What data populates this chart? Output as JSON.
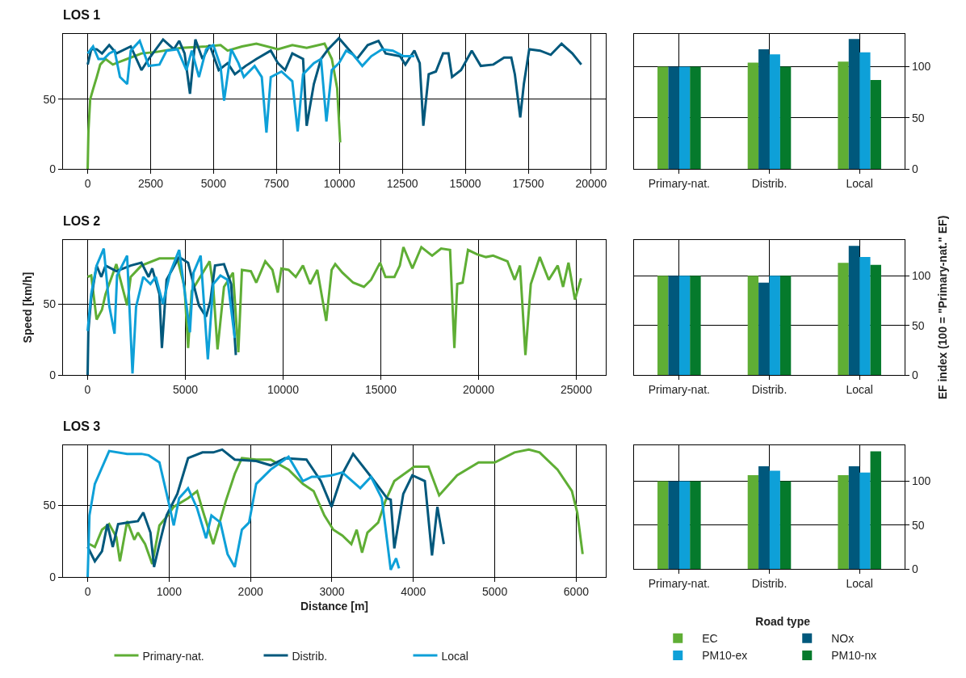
{
  "chart_data": [
    {
      "type": "line",
      "title": "LOS 1",
      "xlim": [
        -980,
        20580
      ],
      "xticks": [
        0,
        2500,
        5000,
        7500,
        10000,
        12500,
        15000,
        17500,
        20000
      ],
      "ylim": [
        0,
        97
      ],
      "yticks": [
        0,
        50
      ],
      "grid": true,
      "series": [
        {
          "color": "#5fae35",
          "x": [
            0,
            30,
            100,
            210,
            360,
            500,
            710,
            1000,
            1280,
            1710,
            2140,
            2710,
            3710,
            4710,
            5280,
            5560,
            6130,
            6700,
            7560,
            8130,
            8700,
            9410,
            9700,
            9910,
            10030
          ],
          "values": [
            0,
            27,
            50,
            57,
            66,
            75,
            79,
            75,
            77,
            80,
            83,
            84,
            87,
            88,
            89,
            85,
            88,
            90,
            86,
            89,
            87,
            90,
            79,
            58,
            19
          ]
        },
        {
          "color": "#00587c",
          "x": [
            0,
            143,
            357,
            570,
            856,
            1141,
            1711,
            2139,
            2424,
            2995,
            3422,
            3636,
            3850,
            4064,
            4278,
            4563,
            4848,
            5205,
            5561,
            5847,
            6274,
            6702,
            7273,
            7558,
            7843,
            8128,
            8556,
            8699,
            8984,
            9269,
            9554,
            9982,
            10267,
            10695,
            11123,
            11551,
            11836,
            12406,
            12620,
            12977,
            13190,
            13333,
            13547,
            13832,
            14117,
            14331,
            14474,
            14830,
            15258,
            15615,
            16114,
            16542,
            16827,
            16969,
            17183,
            17326,
            17540,
            17968,
            18395,
            18823,
            19251,
            19608
          ],
          "values": [
            75,
            86,
            86,
            83,
            89,
            83,
            88,
            71,
            79,
            93,
            86,
            92,
            83,
            54,
            93,
            79,
            89,
            71,
            76,
            68,
            74,
            79,
            85,
            76,
            71,
            83,
            79,
            31,
            61,
            79,
            86,
            94,
            88,
            79,
            89,
            92,
            83,
            81,
            75,
            85,
            76,
            31,
            68,
            70,
            83,
            83,
            66,
            71,
            85,
            74,
            75,
            80,
            80,
            68,
            37,
            61,
            86,
            85,
            82,
            90,
            83,
            75
          ]
        },
        {
          "color": "#0ea0d8",
          "x": [
            0,
            214,
            428,
            642,
            856,
            1070,
            1283,
            1569,
            1711,
            2068,
            2424,
            2852,
            3137,
            3565,
            3922,
            4135,
            4421,
            4706,
            4991,
            5276,
            5419,
            5704,
            5989,
            6203,
            6631,
            6916,
            7101,
            7273,
            7700,
            8128,
            8342,
            8556,
            8984,
            9269,
            9483,
            9697,
            9982,
            10267,
            10552,
            10909,
            11265,
            11693,
            12121,
            12549,
            12977
          ],
          "values": [
            83,
            88,
            79,
            79,
            83,
            85,
            66,
            61,
            85,
            92,
            74,
            75,
            85,
            86,
            71,
            85,
            66,
            86,
            89,
            74,
            49,
            86,
            76,
            66,
            74,
            66,
            26,
            66,
            70,
            63,
            27,
            68,
            76,
            79,
            34,
            71,
            76,
            85,
            82,
            74,
            81,
            86,
            85,
            81,
            81
          ]
        }
      ]
    },
    {
      "type": "bar",
      "categories": [
        "Primary-nat.",
        "Distrib.",
        "Local"
      ],
      "ylim": [
        0,
        132
      ],
      "yticks": [
        0,
        50,
        100
      ],
      "grid": true,
      "series": [
        {
          "color": "#5fae35",
          "values": [
            100,
            104,
            105
          ]
        },
        {
          "color": "#00587c",
          "values": [
            100,
            117,
            127
          ]
        },
        {
          "color": "#0ea0d8",
          "values": [
            100,
            112,
            114
          ]
        },
        {
          "color": "#057a2c",
          "values": [
            100,
            100,
            87
          ]
        }
      ]
    },
    {
      "type": "line",
      "title": "LOS 2",
      "ylabel": "Speed [km/h]",
      "xlim": [
        -1260,
        26510
      ],
      "xticks": [
        0,
        5000,
        10000,
        15000,
        20000,
        25000
      ],
      "ylim": [
        0,
        95
      ],
      "yticks": [
        0,
        50
      ],
      "grid": true,
      "series": [
        {
          "color": "#5fae35",
          "x": [
            0,
            184,
            459,
            734,
            918,
            1469,
            2020,
            2203,
            2754,
            3672,
            4590,
            4957,
            5141,
            5324,
            6242,
            6426,
            6646,
            6977,
            7436,
            7711,
            7895,
            8354,
            8629,
            9088,
            9455,
            9731,
            9914,
            10282,
            10649,
            11016,
            11383,
            11750,
            12209,
            12485,
            12668,
            13036,
            13586,
            14137,
            14504,
            14963,
            15239,
            15698,
            15973,
            16157,
            16616,
            17075,
            17626,
            18085,
            18544,
            18764,
            18911,
            19186,
            19462,
            19921,
            20380,
            20747,
            21481,
            21848,
            22124,
            22399,
            22675,
            23134,
            23593,
            24052,
            24327,
            24602,
            24933,
            25245
          ],
          "values": [
            69,
            70,
            39,
            46,
            57,
            78,
            49,
            69,
            77,
            82,
            82,
            62,
            19,
            59,
            80,
            62,
            18,
            62,
            72,
            16,
            74,
            73,
            65,
            80,
            74,
            58,
            75,
            74,
            69,
            77,
            64,
            74,
            38,
            74,
            78,
            72,
            65,
            62,
            67,
            79,
            69,
            69,
            77,
            90,
            75,
            90,
            84,
            89,
            88,
            19,
            64,
            65,
            88,
            85,
            83,
            84,
            80,
            67,
            77,
            14,
            64,
            83,
            67,
            77,
            62,
            79,
            53,
            68
          ]
        },
        {
          "color": "#00587c",
          "x": [
            0,
            37,
            184,
            459,
            698,
            918,
            1469,
            2203,
            2754,
            3121,
            3305,
            3672,
            3800,
            4039,
            4682,
            5141,
            5692,
            6059,
            6279,
            6518,
            6977,
            7344,
            7583
          ],
          "values": [
            0,
            31,
            54,
            77,
            69,
            77,
            73,
            77,
            79,
            69,
            75,
            57,
            19,
            67,
            83,
            79,
            49,
            41,
            52,
            77,
            78,
            64,
            14
          ]
        },
        {
          "color": "#0ea0d8",
          "x": [
            0,
            184,
            459,
            826,
            1102,
            1377,
            1506,
            2020,
            2295,
            2479,
            2846,
            3213,
            3488,
            3856,
            4223,
            4682,
            5049,
            5233,
            5416,
            5783,
            6151,
            6426,
            6793,
            7160,
            7528
          ],
          "values": [
            31,
            57,
            77,
            89,
            49,
            29,
            70,
            84,
            1,
            48,
            69,
            64,
            69,
            50,
            72,
            88,
            50,
            30,
            72,
            84,
            11,
            64,
            70,
            67,
            26
          ]
        }
      ]
    },
    {
      "type": "bar",
      "ylabel": "EF index (100 = \"Primary-nat.\" EF)",
      "categories": [
        "Primary-nat.",
        "Distrib.",
        "Local"
      ],
      "ylim": [
        0,
        136
      ],
      "yticks": [
        0,
        50,
        100
      ],
      "grid": true,
      "series": [
        {
          "color": "#5fae35",
          "values": [
            100,
            100,
            113
          ]
        },
        {
          "color": "#00587c",
          "values": [
            100,
            93,
            130
          ]
        },
        {
          "color": "#0ea0d8",
          "values": [
            100,
            100,
            119
          ]
        },
        {
          "color": "#057a2c",
          "values": [
            100,
            100,
            111
          ]
        }
      ]
    },
    {
      "type": "line",
      "title": "LOS 3",
      "xlabel": "Distance [m]",
      "xlim": [
        -303,
        6363
      ],
      "xticks": [
        0,
        1000,
        2000,
        3000,
        4000,
        5000,
        6000
      ],
      "ylim": [
        0,
        92
      ],
      "yticks": [
        0,
        50
      ],
      "grid": true,
      "legend": "bottom",
      "series": [
        {
          "name": "Primary-nat.",
          "color": "#5fae35",
          "x": [
            22,
            88,
            176,
            264,
            352,
            396,
            485,
            573,
            617,
            705,
            793,
            881,
            969,
            1057,
            1233,
            1344,
            1410,
            1542,
            1630,
            1696,
            1806,
            1894,
            2070,
            2247,
            2467,
            2643,
            2775,
            2907,
            3017,
            3128,
            3238,
            3304,
            3370,
            3436,
            3568,
            3656,
            3766,
            4009,
            4185,
            4317,
            4537,
            4801,
            5000,
            5242,
            5418,
            5550,
            5771,
            5947,
            6013,
            6079
          ],
          "values": [
            23,
            21,
            33,
            37,
            28,
            11,
            39,
            26,
            31,
            23,
            9,
            36,
            42,
            49,
            55,
            60,
            47,
            23,
            40,
            53,
            72,
            83,
            82,
            82,
            75,
            65,
            60,
            43,
            33,
            29,
            23,
            33,
            17,
            31,
            38,
            53,
            67,
            77,
            77,
            57,
            71,
            80,
            80,
            87,
            89,
            87,
            75,
            60,
            45,
            16
          ]
        },
        {
          "name": "Distrib.",
          "color": "#00587c",
          "x": [
            0,
            88,
            176,
            242,
            308,
            374,
            485,
            617,
            683,
            771,
            815,
            881,
            969,
            1101,
            1233,
            1410,
            1542,
            1652,
            1806,
            2070,
            2247,
            2423,
            2687,
            2863,
            2995,
            3128,
            3260,
            3480,
            3678,
            3722,
            3766,
            3876,
            3987,
            4141,
            4229,
            4295,
            4374
          ],
          "values": [
            21,
            11,
            18,
            37,
            21,
            37,
            38,
            39,
            45,
            31,
            7,
            23,
            43,
            58,
            83,
            87,
            87,
            89,
            82,
            81,
            78,
            83,
            82,
            67,
            49,
            72,
            86,
            70,
            55,
            54,
            20,
            58,
            71,
            67,
            15,
            49,
            23
          ]
        },
        {
          "name": "Local",
          "color": "#0ea0d8",
          "x": [
            0,
            22,
            88,
            264,
            485,
            661,
            749,
            881,
            991,
            1057,
            1123,
            1233,
            1344,
            1454,
            1520,
            1630,
            1718,
            1806,
            1894,
            1982,
            2070,
            2247,
            2467,
            2643,
            2753,
            2863,
            2995,
            3128,
            3348,
            3480,
            3612,
            3722,
            3788,
            3824
          ],
          "values": [
            0,
            43,
            65,
            88,
            86,
            86,
            85,
            80,
            53,
            36,
            55,
            62,
            48,
            27,
            43,
            38,
            16,
            7,
            33,
            38,
            65,
            75,
            84,
            67,
            70,
            70,
            71,
            73,
            62,
            70,
            55,
            5,
            13,
            6
          ]
        }
      ]
    },
    {
      "type": "bar",
      "categories": [
        "Primary-nat.",
        "Distrib.",
        "Local"
      ],
      "ylim": [
        0,
        141
      ],
      "yticks": [
        0,
        50,
        100
      ],
      "grid": true,
      "legend": "bottom",
      "legend_title": "Road type",
      "series": [
        {
          "name": "EC",
          "color": "#5fae35",
          "values": [
            100,
            107,
            107
          ]
        },
        {
          "name": "NOx",
          "color": "#00587c",
          "values": [
            100,
            117,
            117
          ]
        },
        {
          "name": "PM10-ex",
          "color": "#0ea0d8",
          "values": [
            100,
            112,
            110
          ]
        },
        {
          "name": "PM10-nx",
          "color": "#057a2c",
          "values": [
            100,
            100,
            134
          ]
        }
      ]
    }
  ]
}
